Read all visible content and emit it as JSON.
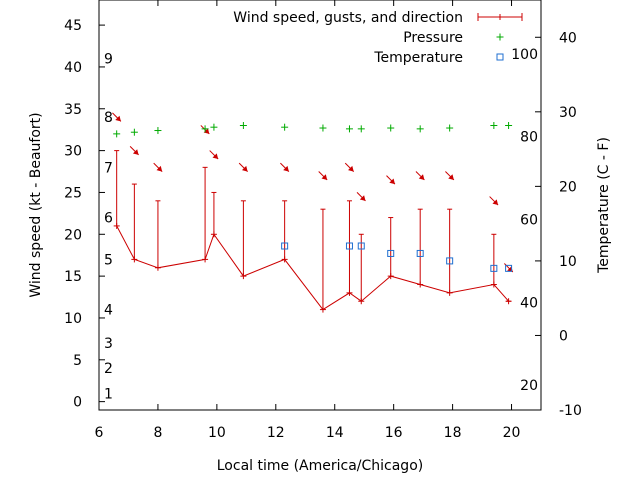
{
  "chart_data": {
    "type": "line",
    "xlabel": "Local time (America/Chicago)",
    "ylabel_left": "Wind speed (kt - Beaufort)",
    "ylabel_right": "Temperature (C - F)",
    "xlim": [
      6,
      21
    ],
    "ylim_left": [
      -1,
      48
    ],
    "ylim_right": [
      -10,
      45
    ],
    "x_ticks": [
      6,
      8,
      10,
      12,
      14,
      16,
      18,
      20
    ],
    "y_left_ticks": [
      0,
      5,
      10,
      15,
      20,
      25,
      30,
      35,
      40,
      45
    ],
    "y_right_c_ticks": [
      -10,
      0,
      10,
      20,
      30,
      40
    ],
    "y_right_f_ticks": [
      {
        "label": "20",
        "c": -6.67
      },
      {
        "label": "40",
        "c": 4.44
      },
      {
        "label": "60",
        "c": 15.56
      },
      {
        "label": "80",
        "c": 26.67
      },
      {
        "label": "100",
        "c": 37.78
      }
    ],
    "beaufort_ticks": [
      {
        "label": "1",
        "kt": 1
      },
      {
        "label": "2",
        "kt": 4
      },
      {
        "label": "3",
        "kt": 7
      },
      {
        "label": "4",
        "kt": 11
      },
      {
        "label": "5",
        "kt": 17
      },
      {
        "label": "6",
        "kt": 22
      },
      {
        "label": "7",
        "kt": 28
      },
      {
        "label": "8",
        "kt": 34
      },
      {
        "label": "9",
        "kt": 41
      }
    ],
    "legend": [
      {
        "name": "Wind speed, gusts, and direction",
        "symbol": "errorbar",
        "color": "#cc0000"
      },
      {
        "name": "Pressure",
        "symbol": "plus",
        "color": "#00aa00"
      },
      {
        "name": "Temperature",
        "symbol": "square",
        "color": "#1f6fd0"
      }
    ],
    "series": [
      {
        "name": "Wind speed, gusts, and direction",
        "color": "#cc0000",
        "x": [
          6.6,
          7.2,
          8.0,
          9.6,
          9.9,
          10.9,
          12.3,
          13.6,
          14.5,
          14.9,
          15.9,
          16.9,
          17.9,
          19.4,
          19.9
        ],
        "wind": [
          21,
          17,
          16,
          17,
          20,
          15,
          17,
          11,
          13,
          12,
          15,
          14,
          13,
          14,
          12
        ],
        "gust": [
          30,
          26,
          24,
          28,
          25,
          24,
          24,
          23,
          24,
          20,
          22,
          23,
          23,
          20,
          12
        ]
      },
      {
        "name": "Pressure",
        "color": "#00aa00",
        "x": [
          6.6,
          7.2,
          8.0,
          9.6,
          9.9,
          10.9,
          12.3,
          13.6,
          14.5,
          14.9,
          15.9,
          16.9,
          17.9,
          19.4,
          19.9
        ],
        "y": [
          32.0,
          32.2,
          32.4,
          32.6,
          32.8,
          33.0,
          32.8,
          32.7,
          32.6,
          32.6,
          32.7,
          32.6,
          32.7,
          33.0,
          33.0
        ]
      },
      {
        "name": "Temperature",
        "color": "#1f6fd0",
        "x": [
          12.3,
          14.5,
          14.9,
          15.9,
          16.9,
          17.9,
          19.4,
          19.9
        ],
        "y": [
          12,
          12,
          12,
          11,
          11,
          10,
          9,
          9
        ]
      }
    ],
    "direction_arrows": {
      "color": "#cc0000",
      "x": [
        6.6,
        7.2,
        8.0,
        9.6,
        9.9,
        10.9,
        12.3,
        13.6,
        14.5,
        14.9,
        15.9,
        16.9,
        17.9,
        19.4,
        19.9
      ],
      "y": [
        34,
        30,
        28,
        32.5,
        29.5,
        28,
        28,
        27,
        28,
        24.5,
        26.5,
        27,
        27,
        24,
        16
      ],
      "angle": [
        -45,
        -45,
        -45,
        -45,
        -45,
        -45,
        -45,
        -45,
        -45,
        -45,
        -45,
        -45,
        -45,
        -45,
        -45
      ]
    }
  }
}
